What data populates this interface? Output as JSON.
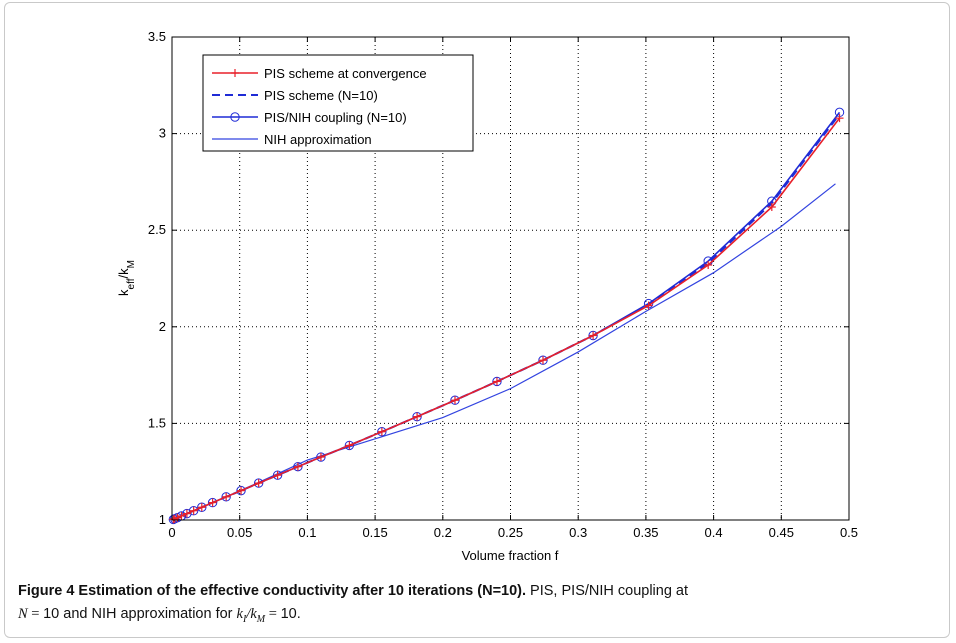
{
  "chart_data": {
    "type": "line",
    "xlabel": "Volume fraction f",
    "ylabel": {
      "base": "k",
      "sub1": "eff",
      "sep": "/k",
      "sub2": "M"
    },
    "xlim": [
      0,
      0.5
    ],
    "ylim": [
      1,
      3.5
    ],
    "xticks": [
      0,
      0.05,
      0.1,
      0.15,
      0.2,
      0.25,
      0.3,
      0.35,
      0.4,
      0.45,
      0.5
    ],
    "xtick_labels": [
      "0",
      "0.05",
      "0.1",
      "0.15",
      "0.2",
      "0.25",
      "0.3",
      "0.35",
      "0.4",
      "0.45",
      "0.5"
    ],
    "yticks": [
      1,
      1.5,
      2,
      2.5,
      3,
      3.5
    ],
    "ytick_labels": [
      "1",
      "1.5",
      "2",
      "2.5",
      "3",
      "3.5"
    ],
    "grid": true,
    "legend_position": "top-left",
    "series": [
      {
        "name": "PIS scheme at convergence",
        "color": "#e8202a",
        "style": "solid",
        "marker": "plus",
        "x": [
          0.001,
          0.002,
          0.004,
          0.007,
          0.011,
          0.016,
          0.022,
          0.03,
          0.04,
          0.051,
          0.064,
          0.078,
          0.093,
          0.11,
          0.131,
          0.155,
          0.181,
          0.209,
          0.24,
          0.274,
          0.311,
          0.352,
          0.396,
          0.443,
          0.493
        ],
        "y": [
          1.003,
          1.006,
          1.012,
          1.021,
          1.033,
          1.048,
          1.066,
          1.09,
          1.12,
          1.152,
          1.191,
          1.232,
          1.276,
          1.326,
          1.386,
          1.457,
          1.535,
          1.62,
          1.717,
          1.827,
          1.955,
          2.11,
          2.32,
          2.62,
          3.08
        ]
      },
      {
        "name": "PIS scheme (N=10)",
        "color": "#1f2bd6",
        "style": "dashed",
        "marker": "none",
        "x": [
          0.001,
          0.002,
          0.004,
          0.007,
          0.011,
          0.016,
          0.022,
          0.03,
          0.04,
          0.051,
          0.064,
          0.078,
          0.093,
          0.11,
          0.131,
          0.155,
          0.181,
          0.209,
          0.24,
          0.274,
          0.311,
          0.352,
          0.396,
          0.443,
          0.493
        ],
        "y": [
          1.003,
          1.006,
          1.012,
          1.021,
          1.033,
          1.048,
          1.066,
          1.09,
          1.12,
          1.152,
          1.191,
          1.232,
          1.276,
          1.326,
          1.386,
          1.457,
          1.535,
          1.62,
          1.717,
          1.827,
          1.955,
          2.115,
          2.33,
          2.64,
          3.1
        ]
      },
      {
        "name": "PIS/NIH coupling (N=10)",
        "color": "#1f2bd6",
        "style": "solid",
        "marker": "circle",
        "x": [
          0.001,
          0.002,
          0.004,
          0.007,
          0.011,
          0.016,
          0.022,
          0.03,
          0.04,
          0.051,
          0.064,
          0.078,
          0.093,
          0.11,
          0.131,
          0.155,
          0.181,
          0.209,
          0.24,
          0.274,
          0.311,
          0.352,
          0.396,
          0.443,
          0.493
        ],
        "y": [
          1.003,
          1.006,
          1.012,
          1.021,
          1.033,
          1.048,
          1.066,
          1.09,
          1.12,
          1.152,
          1.191,
          1.232,
          1.276,
          1.326,
          1.386,
          1.457,
          1.535,
          1.62,
          1.717,
          1.827,
          1.955,
          2.12,
          2.34,
          2.65,
          3.11
        ]
      },
      {
        "name": "NIH approximation",
        "color": "#3344e0",
        "style": "solid-thin",
        "marker": "none",
        "x": [
          0,
          0.05,
          0.1,
          0.15,
          0.2,
          0.25,
          0.3,
          0.35,
          0.4,
          0.45,
          0.49
        ],
        "y": [
          1,
          1.15,
          1.31,
          1.42,
          1.53,
          1.68,
          1.87,
          2.08,
          2.28,
          2.52,
          2.74
        ]
      }
    ]
  },
  "caption": {
    "title": "Figure 4 Estimation of the effective conductivity after 10 iterations (N=10).",
    "text1": " PIS, PIS/NIH coupling at",
    "math1": "N",
    "math1_rest": " = ",
    "text2": "10 and NIH approximation for ",
    "math2": "k",
    "math2_sub": "I",
    "math2_sep": "/k",
    "math2_sub2": "M",
    "math2_rest": " = ",
    "text3": "10."
  }
}
